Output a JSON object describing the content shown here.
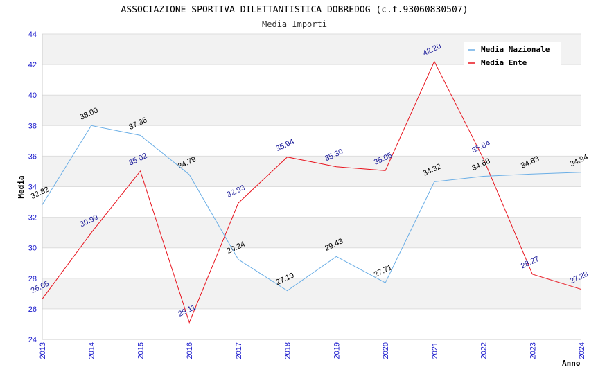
{
  "chart_data": {
    "type": "line",
    "title": "ASSOCIAZIONE SPORTIVA DILETTANTISTICA DOBREDOG (c.f.93060830507)",
    "subtitle": "Media Importi",
    "xlabel": "Anno",
    "ylabel": "Media",
    "ylim": [
      24,
      44
    ],
    "yticks": [
      "24",
      "26",
      "28",
      "30",
      "32",
      "34",
      "36",
      "38",
      "40",
      "42",
      "44"
    ],
    "categories": [
      "2013",
      "2014",
      "2015",
      "2016",
      "2017",
      "2018",
      "2019",
      "2020",
      "2021",
      "2022",
      "2023",
      "2024"
    ],
    "legend_position": "top-right",
    "series": [
      {
        "name": "Media Nazionale",
        "color": "#6aaee6",
        "values": [
          32.82,
          38.0,
          37.36,
          34.79,
          29.24,
          27.19,
          29.43,
          27.71,
          34.32,
          34.68,
          34.83,
          34.94
        ],
        "labels": [
          "32.82",
          "38.00",
          "37.36",
          "34.79",
          "29.24",
          "27.19",
          "29.43",
          "27.71",
          "34.32",
          "34.68",
          "34.83",
          "34.94"
        ]
      },
      {
        "name": "Media Ente",
        "color": "#e8141e",
        "values": [
          26.65,
          30.99,
          35.02,
          25.11,
          32.93,
          35.94,
          35.3,
          35.05,
          42.2,
          35.84,
          28.27,
          27.28
        ],
        "labels": [
          "26.65",
          "30.99",
          "35.02",
          "25.11",
          "32.93",
          "35.94",
          "35.30",
          "35.05",
          "42.20",
          "35.84",
          "28.27",
          "27.28"
        ]
      }
    ]
  }
}
